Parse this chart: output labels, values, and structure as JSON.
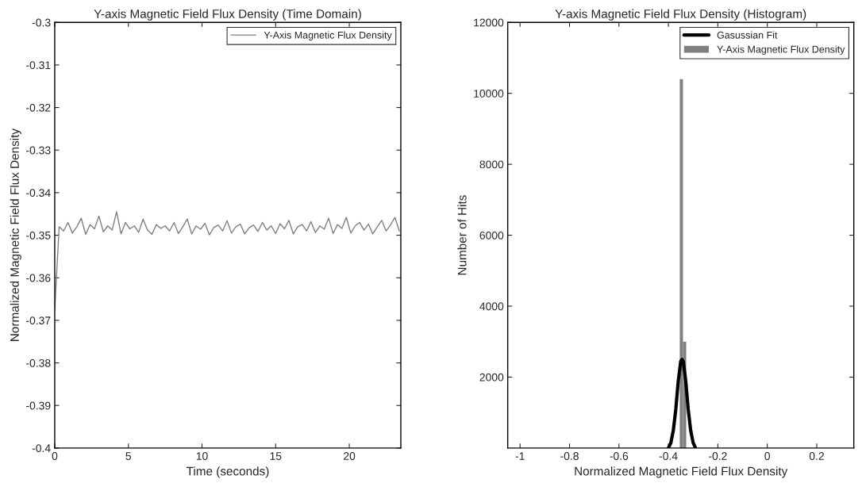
{
  "chart_data": [
    {
      "type": "line",
      "title": "Y-axis Magnetic Field Flux Density (Time Domain)",
      "xlabel": "Time (seconds)",
      "ylabel": "Normalized Magnetic Field Flux Density",
      "x": [
        0,
        0.3,
        0.6,
        0.9,
        1.2,
        1.5,
        1.8,
        2.1,
        2.4,
        2.7,
        3.0,
        3.3,
        3.6,
        3.9,
        4.2,
        4.5,
        4.8,
        5.1,
        5.4,
        5.7,
        6.0,
        6.3,
        6.6,
        6.9,
        7.2,
        7.5,
        7.8,
        8.1,
        8.4,
        8.7,
        9.0,
        9.3,
        9.6,
        9.9,
        10.2,
        10.5,
        10.8,
        11.1,
        11.4,
        11.7,
        12.0,
        12.3,
        12.6,
        12.9,
        13.2,
        13.5,
        13.8,
        14.1,
        14.4,
        14.7,
        15.0,
        15.3,
        15.6,
        15.9,
        16.2,
        16.5,
        16.8,
        17.1,
        17.4,
        17.7,
        18.0,
        18.3,
        18.6,
        18.9,
        19.2,
        19.5,
        19.8,
        20.1,
        20.4,
        20.7,
        21.0,
        21.3,
        21.6,
        21.9,
        22.2,
        22.5,
        22.8,
        23.1,
        23.4
      ],
      "series": [
        {
          "name": "Y-Axis Magnetic Flux Density",
          "color": "#808080",
          "values": [
            -0.3675,
            -0.348,
            -0.349,
            -0.347,
            -0.3495,
            -0.348,
            -0.346,
            -0.3498,
            -0.3475,
            -0.3485,
            -0.3455,
            -0.3492,
            -0.3478,
            -0.3488,
            -0.3445,
            -0.3497,
            -0.347,
            -0.3485,
            -0.3478,
            -0.3493,
            -0.3462,
            -0.3488,
            -0.3498,
            -0.3475,
            -0.3484,
            -0.3478,
            -0.349,
            -0.347,
            -0.3496,
            -0.348,
            -0.3462,
            -0.3497,
            -0.3478,
            -0.3486,
            -0.3472,
            -0.3499,
            -0.3482,
            -0.3476,
            -0.349,
            -0.3466,
            -0.3495,
            -0.348,
            -0.3474,
            -0.3497,
            -0.3483,
            -0.3476,
            -0.3491,
            -0.347,
            -0.3488,
            -0.3478,
            -0.3496,
            -0.3473,
            -0.3485,
            -0.3465,
            -0.3497,
            -0.348,
            -0.3475,
            -0.349,
            -0.3468,
            -0.3494,
            -0.3478,
            -0.3486,
            -0.346,
            -0.3496,
            -0.3475,
            -0.3484,
            -0.3458,
            -0.3495,
            -0.3478,
            -0.347,
            -0.3488,
            -0.3474,
            -0.3497,
            -0.348,
            -0.3465,
            -0.349,
            -0.3476,
            -0.3458,
            -0.349
          ]
        }
      ],
      "xlim": [
        0,
        23.5
      ],
      "xticks": [
        0,
        5,
        10,
        15,
        20
      ],
      "ylim": [
        -0.4,
        -0.3
      ],
      "yticks": [
        -0.4,
        -0.39,
        -0.38,
        -0.37,
        -0.36,
        -0.35,
        -0.34,
        -0.33,
        -0.32,
        -0.31,
        -0.3
      ],
      "legend": "top right",
      "grid": false
    },
    {
      "type": "histogram",
      "title": "Y-axis Magnetic Field Flux Density (Histogram)",
      "xlabel": "Normalized Magnetic Field Flux Density",
      "ylabel": "Number of Hits",
      "series": [
        {
          "name": "Y-Axis Magnetic Flux Density",
          "type": "histogram",
          "color": "#808080",
          "bins": [
            -0.354,
            -0.341,
            -0.328
          ],
          "values": [
            10400,
            3000
          ]
        },
        {
          "name": "Gasussian Fit",
          "type": "line",
          "color": "#000000",
          "x": [
            -0.4,
            -0.39,
            -0.38,
            -0.37,
            -0.36,
            -0.35,
            -0.345,
            -0.34,
            -0.33,
            -0.32,
            -0.31,
            -0.3,
            -0.29
          ],
          "values": [
            0,
            150,
            500,
            1100,
            1900,
            2450,
            2500,
            2450,
            1900,
            1100,
            500,
            150,
            0
          ]
        }
      ],
      "xlim": [
        -1.05,
        0.35
      ],
      "xticks": [
        -1,
        -0.8,
        -0.6,
        -0.4,
        -0.2,
        0,
        0.2
      ],
      "ylim": [
        0,
        12000
      ],
      "yticks": [
        2000,
        4000,
        6000,
        8000,
        10000,
        12000
      ],
      "legend": "top right",
      "grid": false
    }
  ]
}
